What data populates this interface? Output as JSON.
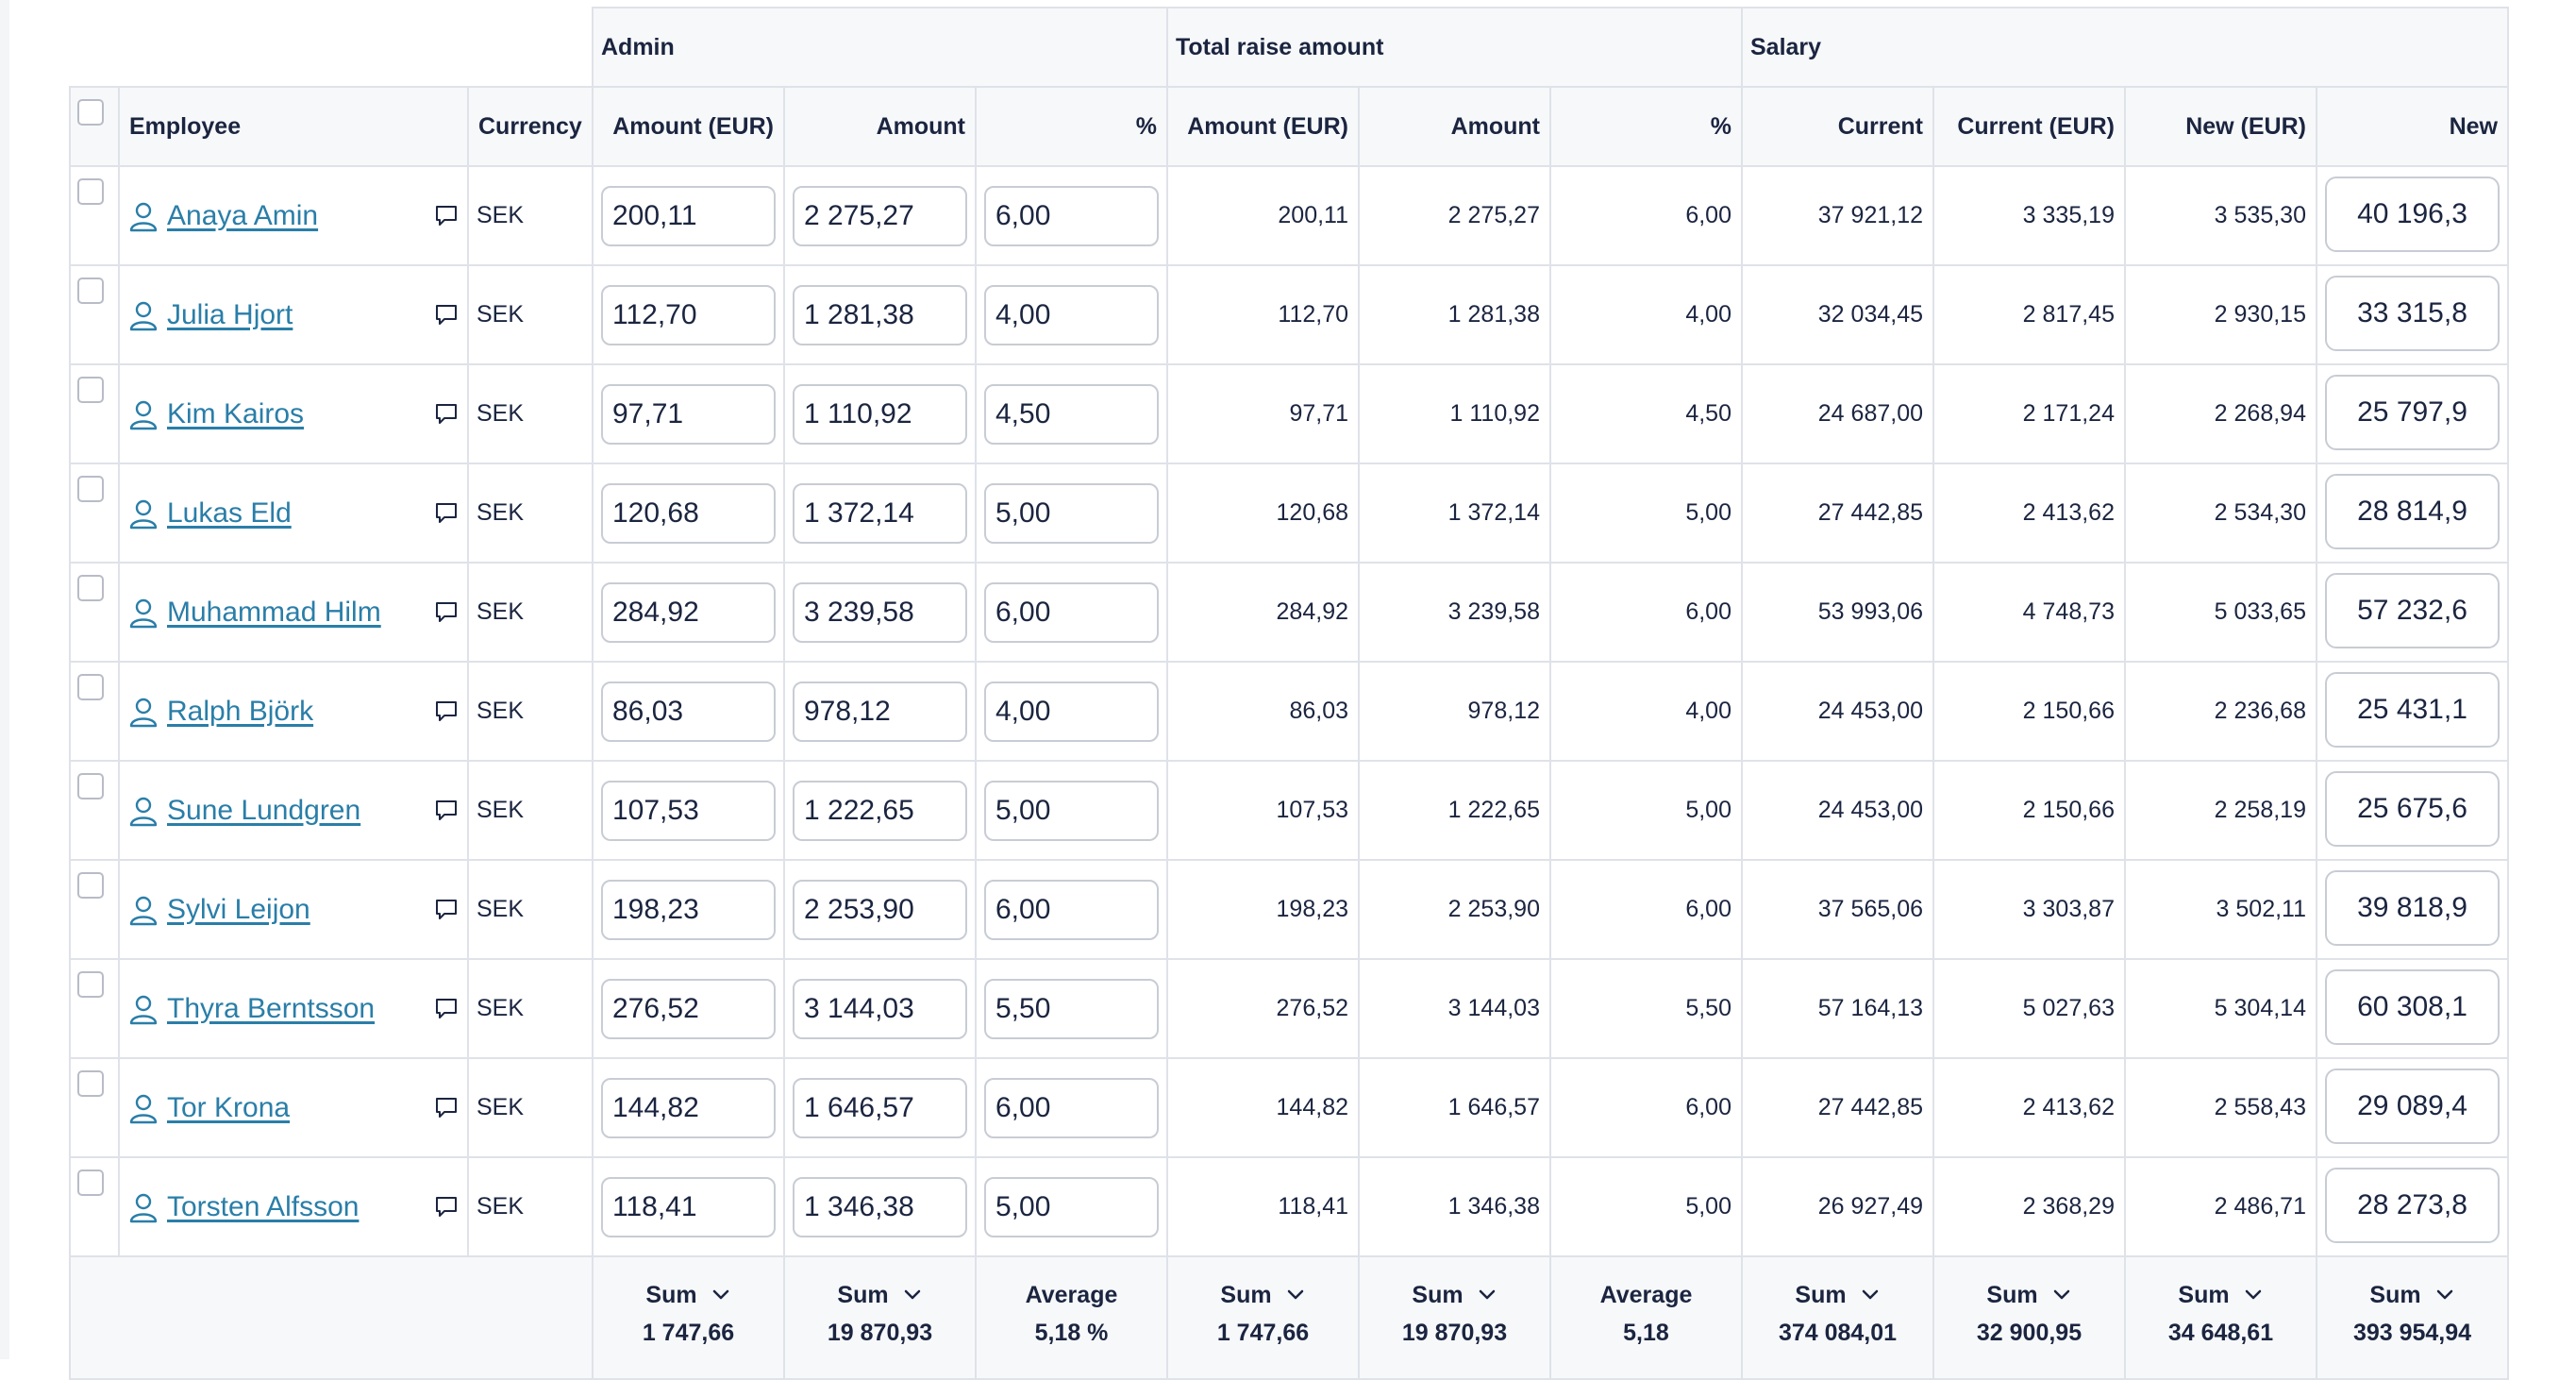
{
  "groups": {
    "admin": "Admin",
    "total_raise": "Total raise amount",
    "salary": "Salary"
  },
  "columns": {
    "employee": "Employee",
    "currency": "Currency",
    "admin_amount_eur": "Amount (EUR)",
    "admin_amount": "Amount",
    "admin_pct": "%",
    "raise_amount_eur": "Amount (EUR)",
    "raise_amount": "Amount",
    "raise_pct": "%",
    "sal_current": "Current",
    "sal_current_eur": "Current (EUR)",
    "sal_new_eur": "New (EUR)",
    "sal_new": "New"
  },
  "rows": [
    {
      "name": "Anaya Amin",
      "currency": "SEK",
      "admin_eur": "200,11",
      "admin_amount": "2 275,27",
      "admin_pct": "6,00",
      "raise_eur": "200,11",
      "raise_amount": "2 275,27",
      "raise_pct": "6,00",
      "current": "37 921,12",
      "current_eur": "3 335,19",
      "new_eur": "3 535,30",
      "new": "40 196,3"
    },
    {
      "name": "Julia Hjort",
      "currency": "SEK",
      "admin_eur": "112,70",
      "admin_amount": "1 281,38",
      "admin_pct": "4,00",
      "raise_eur": "112,70",
      "raise_amount": "1 281,38",
      "raise_pct": "4,00",
      "current": "32 034,45",
      "current_eur": "2 817,45",
      "new_eur": "2 930,15",
      "new": "33 315,8"
    },
    {
      "name": "Kim Kairos",
      "currency": "SEK",
      "admin_eur": "97,71",
      "admin_amount": "1 110,92",
      "admin_pct": "4,50",
      "raise_eur": "97,71",
      "raise_amount": "1 110,92",
      "raise_pct": "4,50",
      "current": "24 687,00",
      "current_eur": "2 171,24",
      "new_eur": "2 268,94",
      "new": "25 797,9"
    },
    {
      "name": "Lukas Eld",
      "currency": "SEK",
      "admin_eur": "120,68",
      "admin_amount": "1 372,14",
      "admin_pct": "5,00",
      "raise_eur": "120,68",
      "raise_amount": "1 372,14",
      "raise_pct": "5,00",
      "current": "27 442,85",
      "current_eur": "2 413,62",
      "new_eur": "2 534,30",
      "new": "28 814,9"
    },
    {
      "name": "Muhammad Hilm",
      "currency": "SEK",
      "admin_eur": "284,92",
      "admin_amount": "3 239,58",
      "admin_pct": "6,00",
      "raise_eur": "284,92",
      "raise_amount": "3 239,58",
      "raise_pct": "6,00",
      "current": "53 993,06",
      "current_eur": "4 748,73",
      "new_eur": "5 033,65",
      "new": "57 232,6"
    },
    {
      "name": "Ralph Björk",
      "currency": "SEK",
      "admin_eur": "86,03",
      "admin_amount": "978,12",
      "admin_pct": "4,00",
      "raise_eur": "86,03",
      "raise_amount": "978,12",
      "raise_pct": "4,00",
      "current": "24 453,00",
      "current_eur": "2 150,66",
      "new_eur": "2 236,68",
      "new": "25 431,1"
    },
    {
      "name": "Sune Lundgren",
      "currency": "SEK",
      "admin_eur": "107,53",
      "admin_amount": "1 222,65",
      "admin_pct": "5,00",
      "raise_eur": "107,53",
      "raise_amount": "1 222,65",
      "raise_pct": "5,00",
      "current": "24 453,00",
      "current_eur": "2 150,66",
      "new_eur": "2 258,19",
      "new": "25 675,6"
    },
    {
      "name": "Sylvi Leijon",
      "currency": "SEK",
      "admin_eur": "198,23",
      "admin_amount": "2 253,90",
      "admin_pct": "6,00",
      "raise_eur": "198,23",
      "raise_amount": "2 253,90",
      "raise_pct": "6,00",
      "current": "37 565,06",
      "current_eur": "3 303,87",
      "new_eur": "3 502,11",
      "new": "39 818,9"
    },
    {
      "name": "Thyra Berntsson",
      "currency": "SEK",
      "admin_eur": "276,52",
      "admin_amount": "3 144,03",
      "admin_pct": "5,50",
      "raise_eur": "276,52",
      "raise_amount": "3 144,03",
      "raise_pct": "5,50",
      "current": "57 164,13",
      "current_eur": "5 027,63",
      "new_eur": "5 304,14",
      "new": "60 308,1"
    },
    {
      "name": "Tor Krona",
      "currency": "SEK",
      "admin_eur": "144,82",
      "admin_amount": "1 646,57",
      "admin_pct": "6,00",
      "raise_eur": "144,82",
      "raise_amount": "1 646,57",
      "raise_pct": "6,00",
      "current": "27 442,85",
      "current_eur": "2 413,62",
      "new_eur": "2 558,43",
      "new": "29 089,4"
    },
    {
      "name": "Torsten Alfsson",
      "currency": "SEK",
      "admin_eur": "118,41",
      "admin_amount": "1 346,38",
      "admin_pct": "5,00",
      "raise_eur": "118,41",
      "raise_amount": "1 346,38",
      "raise_pct": "5,00",
      "current": "26 927,49",
      "current_eur": "2 368,29",
      "new_eur": "2 486,71",
      "new": "28 273,8"
    }
  ],
  "footer": {
    "admin_eur": {
      "label": "Sum",
      "value": "1 747,66"
    },
    "admin_amount": {
      "label": "Sum",
      "value": "19 870,93"
    },
    "admin_pct": {
      "label": "Average",
      "value": "5,18 %"
    },
    "raise_eur": {
      "label": "Sum",
      "value": "1 747,66"
    },
    "raise_amount": {
      "label": "Sum",
      "value": "19 870,93"
    },
    "raise_pct": {
      "label": "Average",
      "value": "5,18"
    },
    "current": {
      "label": "Sum",
      "value": "374 084,01"
    },
    "current_eur": {
      "label": "Sum",
      "value": "32 900,95"
    },
    "new_eur": {
      "label": "Sum",
      "value": "34 648,61"
    },
    "new": {
      "label": "Sum",
      "value": "393 954,94"
    }
  },
  "icons": {
    "person": "person-icon",
    "comment": "comment-icon",
    "chevron": "chevron-down-icon"
  },
  "colors": {
    "link": "#2a7ea8",
    "border": "#dfe2e8",
    "header_bg": "#f7f8fa",
    "text": "#1b2540"
  }
}
